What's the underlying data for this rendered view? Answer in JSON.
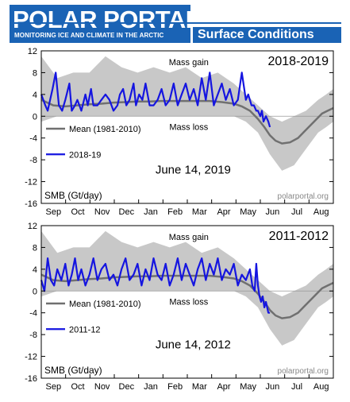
{
  "header": {
    "logo_title": "POLAR PORTAL",
    "logo_subtitle": "MONITORING ICE AND CLIMATE IN THE ARCTIC",
    "subtitle": "Surface Conditions"
  },
  "colors": {
    "brand": "#1a63b5",
    "mean_line": "#707070",
    "range_band": "#c8c8c8",
    "series_line": "#1515e0"
  },
  "chart_data": [
    {
      "type": "line",
      "period": "2018-2019",
      "date_note": "June 14, 2019",
      "ylabel": "SMB (Gt/day)",
      "watermark": "polarportal.org",
      "annotations": {
        "gain": "Mass gain",
        "loss": "Mass loss"
      },
      "ylim": [
        -16,
        12
      ],
      "yticks": [
        -16,
        -12,
        -8,
        -4,
        0,
        4,
        8,
        12
      ],
      "months": [
        "Sep",
        "Oct",
        "Nov",
        "Dec",
        "Jan",
        "Feb",
        "Mar",
        "Apr",
        "May",
        "Jun",
        "Jul",
        "Aug"
      ],
      "x_unit_note": "day index from 1 Sep (0..364)",
      "mean": {
        "name": "Mean (1981-2010)",
        "x": [
          0,
          15,
          30,
          45,
          60,
          75,
          90,
          105,
          120,
          135,
          150,
          165,
          180,
          195,
          210,
          225,
          240,
          250,
          260,
          270,
          278,
          285,
          292,
          300,
          310,
          320,
          330,
          340,
          350,
          357,
          364
        ],
        "y": [
          3.0,
          2.0,
          1.8,
          2.0,
          2.2,
          2.3,
          2.5,
          2.6,
          2.7,
          2.7,
          2.8,
          2.8,
          2.8,
          2.8,
          2.8,
          2.6,
          2.3,
          1.8,
          1.0,
          -0.5,
          -2.0,
          -3.5,
          -4.5,
          -5.0,
          -4.8,
          -4.0,
          -2.5,
          -1.0,
          0.5,
          1.0,
          1.5
        ]
      },
      "range": {
        "x": [
          0,
          20,
          40,
          60,
          80,
          100,
          120,
          140,
          160,
          180,
          200,
          220,
          240,
          255,
          270,
          285,
          300,
          315,
          330,
          345,
          355,
          364
        ],
        "upper": [
          11,
          7,
          8,
          8,
          11,
          9,
          8,
          9,
          8,
          9,
          7,
          8,
          6,
          4,
          2,
          0,
          -1,
          0,
          1,
          3,
          4,
          5
        ],
        "lower": [
          -1,
          0,
          0,
          0,
          0,
          0,
          0,
          0,
          0,
          0,
          0,
          0,
          0,
          -1,
          -3,
          -7,
          -10,
          -9,
          -6,
          -3,
          -2,
          -1
        ]
      },
      "series": {
        "name": "2018-19",
        "x": [
          0,
          5,
          8,
          14,
          18,
          22,
          26,
          30,
          35,
          38,
          42,
          45,
          50,
          55,
          58,
          62,
          65,
          70,
          75,
          80,
          85,
          90,
          95,
          98,
          102,
          106,
          110,
          115,
          118,
          122,
          126,
          130,
          135,
          140,
          145,
          150,
          155,
          160,
          165,
          170,
          175,
          180,
          185,
          190,
          195,
          200,
          205,
          210,
          215,
          220,
          225,
          230,
          235,
          240,
          245,
          250,
          255,
          258,
          262,
          265,
          268,
          270,
          273,
          275,
          277,
          280,
          283,
          285
        ],
        "y": [
          4,
          2,
          1,
          5,
          8,
          2,
          1,
          3,
          6,
          1,
          2,
          3,
          1,
          4,
          2,
          5,
          2,
          2,
          3,
          4,
          3,
          1,
          2,
          4,
          5,
          2,
          3,
          6,
          2,
          4,
          3,
          6,
          2,
          2,
          3,
          5,
          2,
          3,
          6,
          2,
          4,
          6,
          3,
          5,
          2,
          7,
          3,
          8,
          2,
          4,
          6,
          3,
          5,
          2,
          3,
          8,
          3,
          4,
          2,
          2,
          1,
          1,
          0,
          1,
          -1,
          0,
          -1,
          -2
        ]
      }
    },
    {
      "type": "line",
      "period": "2011-2012",
      "date_note": "June 14, 2012",
      "ylabel": "SMB (Gt/day)",
      "watermark": "polarportal.org",
      "annotations": {
        "gain": "Mass gain",
        "loss": "Mass loss"
      },
      "ylim": [
        -16,
        12
      ],
      "yticks": [
        -16,
        -12,
        -8,
        -4,
        0,
        4,
        8,
        12
      ],
      "months": [
        "Sep",
        "Oct",
        "Nov",
        "Dec",
        "Jan",
        "Feb",
        "Mar",
        "Apr",
        "May",
        "Jun",
        "Jul",
        "Aug"
      ],
      "x_unit_note": "day index from 1 Sep (0..364)",
      "mean": {
        "name": "Mean (1981-2010)",
        "x": [
          0,
          15,
          30,
          45,
          60,
          75,
          90,
          105,
          120,
          135,
          150,
          165,
          180,
          195,
          210,
          225,
          240,
          250,
          260,
          270,
          278,
          285,
          292,
          300,
          310,
          320,
          330,
          340,
          350,
          357,
          364
        ],
        "y": [
          3.0,
          2.0,
          1.8,
          2.0,
          2.2,
          2.3,
          2.5,
          2.6,
          2.7,
          2.7,
          2.8,
          2.8,
          2.8,
          2.8,
          2.8,
          2.6,
          2.3,
          1.8,
          1.0,
          -0.5,
          -2.0,
          -3.5,
          -4.5,
          -5.0,
          -4.8,
          -4.0,
          -2.5,
          -1.0,
          0.5,
          1.0,
          1.5
        ]
      },
      "range": {
        "x": [
          0,
          20,
          40,
          60,
          80,
          100,
          120,
          140,
          160,
          180,
          200,
          220,
          240,
          255,
          270,
          285,
          300,
          315,
          330,
          345,
          355,
          364
        ],
        "upper": [
          11,
          7,
          8,
          8,
          11,
          9,
          8,
          9,
          8,
          9,
          7,
          8,
          6,
          4,
          2,
          0,
          -1,
          0,
          1,
          3,
          4,
          5
        ],
        "lower": [
          -1,
          0,
          0,
          0,
          0,
          0,
          0,
          0,
          0,
          0,
          0,
          0,
          0,
          -1,
          -3,
          -7,
          -10,
          -9,
          -6,
          -3,
          -2,
          -1
        ]
      },
      "series": {
        "name": "2011-12",
        "x": [
          0,
          4,
          8,
          12,
          16,
          20,
          25,
          30,
          34,
          38,
          42,
          46,
          50,
          55,
          60,
          65,
          70,
          75,
          80,
          85,
          90,
          95,
          100,
          105,
          110,
          115,
          120,
          125,
          130,
          135,
          140,
          145,
          150,
          155,
          160,
          165,
          170,
          175,
          180,
          185,
          190,
          195,
          200,
          205,
          210,
          215,
          220,
          225,
          230,
          235,
          240,
          245,
          250,
          255,
          260,
          263,
          266,
          268,
          270,
          272,
          274,
          276,
          278,
          280,
          283,
          285
        ],
        "y": [
          2,
          0,
          6,
          2,
          1,
          4,
          2,
          5,
          1,
          3,
          6,
          2,
          4,
          1,
          3,
          6,
          2,
          4,
          5,
          2,
          3,
          1,
          4,
          6,
          2,
          3,
          5,
          1,
          4,
          2,
          6,
          3,
          2,
          5,
          1,
          3,
          6,
          2,
          5,
          3,
          1,
          4,
          6,
          2,
          5,
          3,
          6,
          2,
          4,
          3,
          5,
          1,
          3,
          2,
          4,
          1,
          0,
          5,
          1,
          -1,
          -2,
          -1,
          -3,
          -2,
          -4,
          -4
        ]
      }
    }
  ]
}
